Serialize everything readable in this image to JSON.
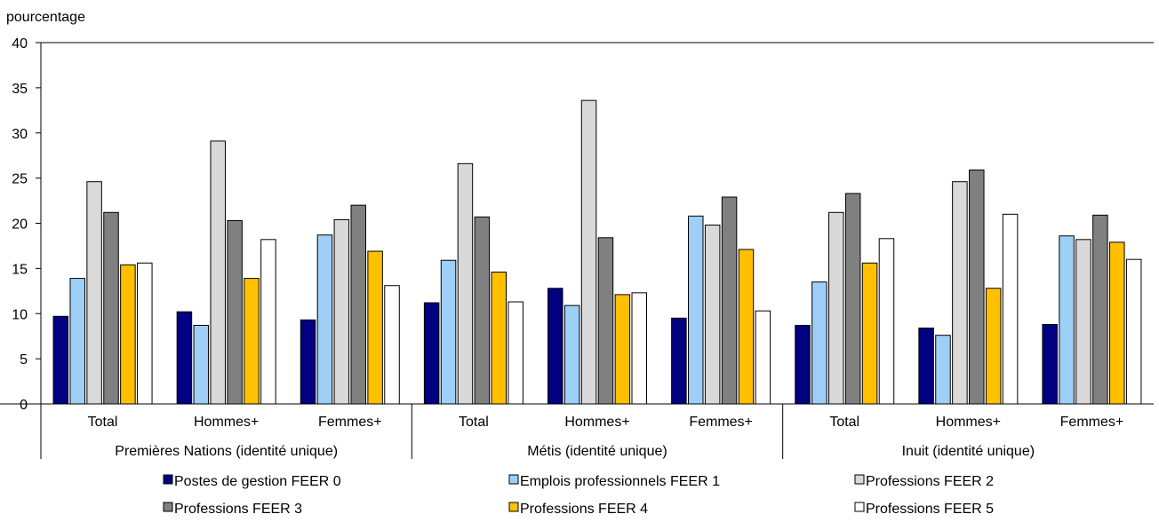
{
  "chart_data": {
    "type": "bar",
    "ylabel": "pourcentage",
    "ylim": [
      0,
      40
    ],
    "yticks": [
      0,
      5,
      10,
      15,
      20,
      25,
      30,
      35,
      40
    ],
    "groups": [
      {
        "label": "Premières Nations (identité unique)",
        "categories": [
          "Total",
          "Hommes+",
          "Femmes+"
        ]
      },
      {
        "label": "Métis (identité unique)",
        "categories": [
          "Total",
          "Hommes+",
          "Femmes+"
        ]
      },
      {
        "label": "Inuit (identité unique)",
        "categories": [
          "Total",
          "Hommes+",
          "Femmes+"
        ]
      }
    ],
    "series": [
      {
        "name": "Postes de gestion FEER 0",
        "color": "#000080",
        "values": [
          9.7,
          10.2,
          9.3,
          11.2,
          12.8,
          9.5,
          8.7,
          8.4,
          8.8
        ]
      },
      {
        "name": "Emplois professionnels FEER 1",
        "color": "#9DCFF7",
        "values": [
          13.9,
          8.7,
          18.7,
          15.9,
          10.9,
          20.8,
          13.5,
          7.6,
          18.6
        ]
      },
      {
        "name": "Professions FEER 2",
        "color": "#D9D9D9",
        "values": [
          24.6,
          29.1,
          20.4,
          26.6,
          33.6,
          19.8,
          21.2,
          24.6,
          18.2
        ]
      },
      {
        "name": "Professions FEER 3",
        "color": "#808080",
        "values": [
          21.2,
          20.3,
          22.0,
          20.7,
          18.4,
          22.9,
          23.3,
          25.9,
          20.9
        ]
      },
      {
        "name": "Professions FEER 4",
        "color": "#FFC000",
        "values": [
          15.4,
          13.9,
          16.9,
          14.6,
          12.1,
          17.1,
          15.6,
          12.8,
          17.9
        ]
      },
      {
        "name": "Professions FEER 5",
        "color": "#FFFFFF",
        "values": [
          15.6,
          18.2,
          13.1,
          11.3,
          12.3,
          10.3,
          18.3,
          21.0,
          16.0
        ]
      }
    ]
  }
}
